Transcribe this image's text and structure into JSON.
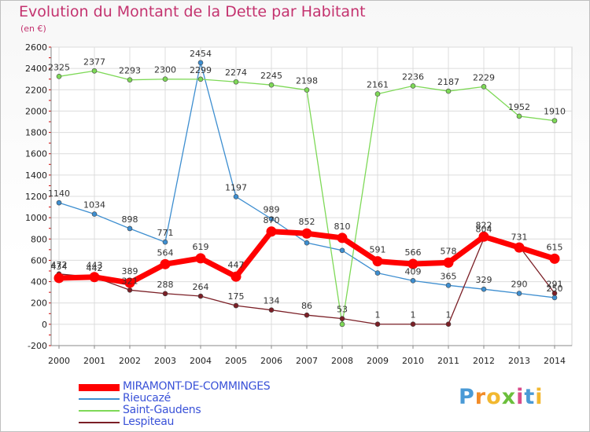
{
  "title": "Evolution du Montant de la Dette par Habitant",
  "subtitle": "(en €)",
  "logo_letters": [
    {
      "ch": "P",
      "color": "#4a9ad6"
    },
    {
      "ch": "r",
      "color": "#f28c28"
    },
    {
      "ch": "o",
      "color": "#f2b830"
    },
    {
      "ch": "x",
      "color": "#6cbf3c"
    },
    {
      "ch": "i",
      "color": "#d94c8a"
    },
    {
      "ch": "t",
      "color": "#4a9ad6"
    },
    {
      "ch": "i",
      "color": "#f2b830"
    }
  ],
  "chart_data": {
    "type": "line",
    "title": "Evolution du Montant de la Dette par Habitant",
    "subtitle": "(en €)",
    "x": [
      "2000",
      "2001",
      "2002",
      "2003",
      "2004",
      "2005",
      "2006",
      "2007",
      "2008",
      "2009",
      "2010",
      "2011",
      "2012",
      "2013",
      "2014"
    ],
    "yticks": [
      -200,
      0,
      200,
      400,
      600,
      800,
      1000,
      1200,
      1400,
      1600,
      1800,
      2000,
      2200,
      2400,
      2600
    ],
    "ylim": [
      -200,
      2600
    ],
    "grid": true,
    "legend_position": "bottom",
    "series": [
      {
        "name": "MIRAMONT-DE-COMMINGES",
        "color": "#ff0000",
        "highlight": true,
        "values": [
          434,
          443,
          389,
          564,
          619,
          447,
          870,
          852,
          810,
          591,
          566,
          578,
          822,
          720,
          615
        ],
        "labels": [
          "434",
          "443",
          "389",
          "564",
          "619",
          "447",
          "870",
          "852",
          "810",
          "591",
          "566",
          "578",
          "822",
          "",
          "615"
        ]
      },
      {
        "name": "Rieucazé",
        "color": "#3d8ed0",
        "values": [
          1140,
          1034,
          898,
          771,
          2454,
          1197,
          989,
          764,
          693,
          481,
          409,
          365,
          329,
          290,
          250
        ],
        "labels": [
          "1140",
          "1034",
          "898",
          "771",
          "2454",
          "1197",
          "989",
          "",
          "",
          "",
          "409",
          "365",
          "329",
          "290",
          "250"
        ]
      },
      {
        "name": "Saint-Gaudens",
        "color": "#7ed957",
        "values": [
          2325,
          2377,
          2293,
          2300,
          2299,
          2274,
          2245,
          2198,
          0,
          2161,
          2236,
          2187,
          2229,
          1952,
          1910
        ],
        "labels": [
          "2325",
          "2377",
          "2293",
          "2300",
          "2299",
          "2274",
          "2245",
          "2198",
          "",
          "2161",
          "2236",
          "2187",
          "2229",
          "1952",
          "1910"
        ]
      },
      {
        "name": "Lespiteau",
        "color": "#7b1f26",
        "values": [
          472,
          442,
          321,
          288,
          264,
          175,
          134,
          86,
          53,
          1,
          1,
          1,
          804,
          731,
          291
        ],
        "labels": [
          "472",
          "442",
          "321",
          "288",
          "264",
          "175",
          "134",
          "86",
          "53",
          "1",
          "1",
          "1",
          "804",
          "731",
          "291"
        ]
      }
    ]
  }
}
